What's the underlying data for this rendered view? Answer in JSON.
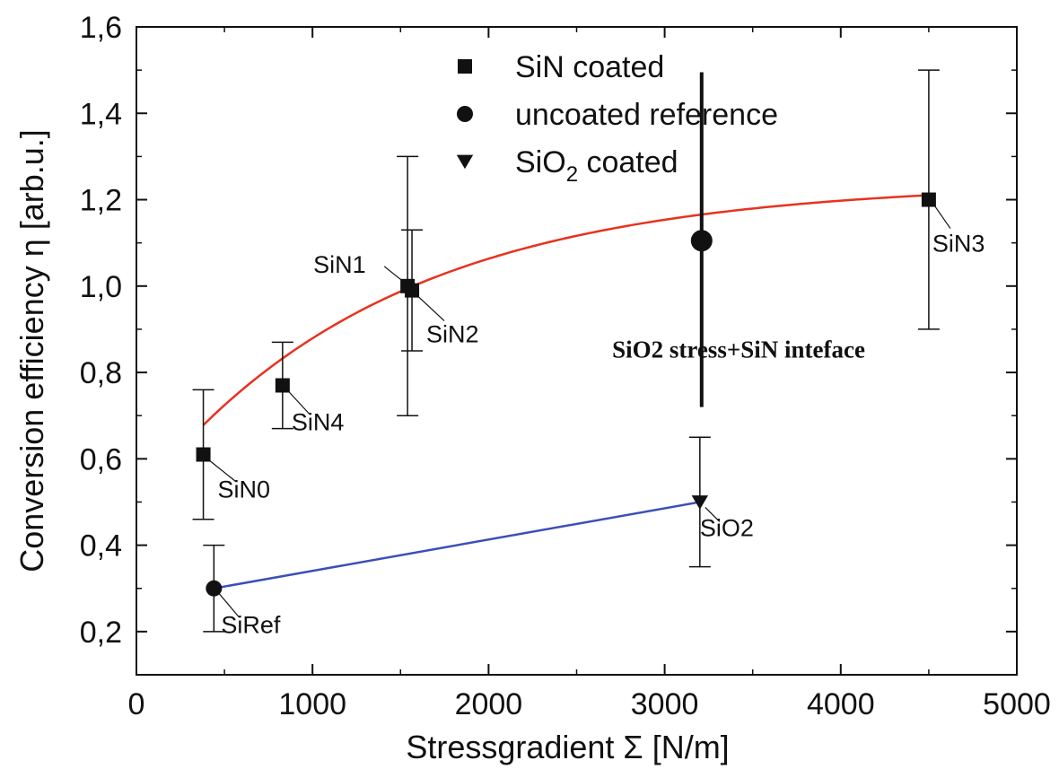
{
  "chart_data": {
    "type": "scatter",
    "xlabel": "Stressgradient Σ [N/m]",
    "ylabel": "Conversion efficiency η [arb.u.]",
    "xlim": [
      0,
      5000
    ],
    "ylim": [
      0.1,
      1.6
    ],
    "x_ticks": [
      "0",
      "1000",
      "2000",
      "3000",
      "4000",
      "5000"
    ],
    "y_ticks": [
      "0,2",
      "0,4",
      "0,6",
      "0,8",
      "1,0",
      "1,2",
      "1,4",
      "1,6"
    ],
    "x_tick_values": [
      0,
      1000,
      2000,
      3000,
      4000,
      5000
    ],
    "y_tick_values": [
      0.2,
      0.4,
      0.6,
      0.8,
      1.0,
      1.2,
      1.4,
      1.6
    ],
    "legend_position": "top-center",
    "series": [
      {
        "name": "SiN coated",
        "marker": "square",
        "points": [
          {
            "label": "SiN0",
            "x": 380,
            "y": 0.61,
            "err": 0.15
          },
          {
            "label": "SiN4",
            "x": 830,
            "y": 0.77,
            "err": 0.1
          },
          {
            "label": "SiN1",
            "x": 1540,
            "y": 1.0,
            "err": 0.3
          },
          {
            "label": "SiN2",
            "x": 1565,
            "y": 0.99,
            "err": 0.14
          },
          {
            "label": "SiN3",
            "x": 4500,
            "y": 1.2,
            "err": 0.3
          }
        ]
      },
      {
        "name": "uncoated reference",
        "name_parts": [
          "uncoated reference"
        ],
        "marker": "circle",
        "points": [
          {
            "label": "SiRef",
            "x": 440,
            "y": 0.3,
            "err": 0.1
          },
          {
            "label": "",
            "x": 3210,
            "y": 1.105,
            "err_low": 0.385,
            "err_high": 0.39,
            "bold": true
          }
        ]
      },
      {
        "name": "SiO2 coated",
        "name_parts": [
          "SiO",
          "2",
          " coated"
        ],
        "marker": "triangle-down",
        "points": [
          {
            "label": "SiO2",
            "x": 3200,
            "y": 0.5,
            "err": 0.15
          }
        ]
      }
    ],
    "fits": [
      {
        "color": "#e8321e",
        "type": "exponential",
        "x": [
          380,
          4500
        ],
        "params": {
          "a": 1.24,
          "b": 0.678,
          "x0": 380,
          "k": 1400
        }
      },
      {
        "color": "#3a4fb8",
        "type": "linear",
        "x": [
          440,
          3200
        ],
        "y": [
          0.3,
          0.5
        ]
      }
    ],
    "annotations": [
      {
        "text": "SiO2 stress+SiN inteface",
        "x": 3420,
        "y": 0.855
      }
    ]
  }
}
